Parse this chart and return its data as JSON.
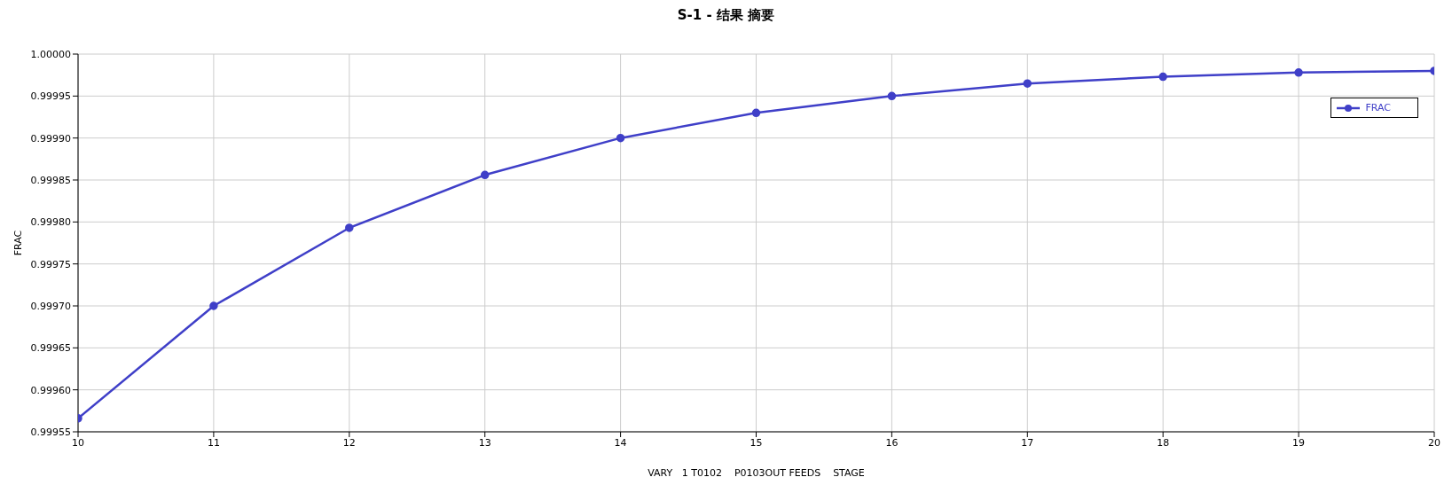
{
  "chart_data": {
    "type": "line",
    "title": "S-1 - 结果 摘要",
    "xlabel": "VARY   1 T0102    P0103OUT FEEDS    STAGE",
    "ylabel": "FRAC",
    "x": [
      10,
      11,
      12,
      13,
      14,
      15,
      16,
      17,
      18,
      19,
      20
    ],
    "series": [
      {
        "name": "FRAC",
        "color": "#3f3fc8",
        "values": [
          0.999566,
          0.9997,
          0.999793,
          0.999856,
          0.9999,
          0.99993,
          0.99995,
          0.999965,
          0.999973,
          0.999978,
          0.99998
        ]
      }
    ],
    "xlim": [
      10,
      20
    ],
    "xticks": [
      10,
      11,
      12,
      13,
      14,
      15,
      16,
      17,
      18,
      19,
      20
    ],
    "ylim": [
      0.99955,
      1
    ],
    "yticks": [
      0.99955,
      {
        "value": 0.9996,
        "label": "0.99960"
      },
      0.99965,
      {
        "value": 0.9997,
        "label": "0.99970"
      },
      0.99975,
      {
        "value": 0.9998,
        "label": "0.99980"
      },
      0.99985,
      {
        "value": 0.9999,
        "label": "0.99990"
      },
      0.99995,
      {
        "value": 1,
        "label": "1.00000"
      }
    ],
    "grid": true,
    "legend": "top right",
    "marker": "circle",
    "line_style": "solid"
  }
}
